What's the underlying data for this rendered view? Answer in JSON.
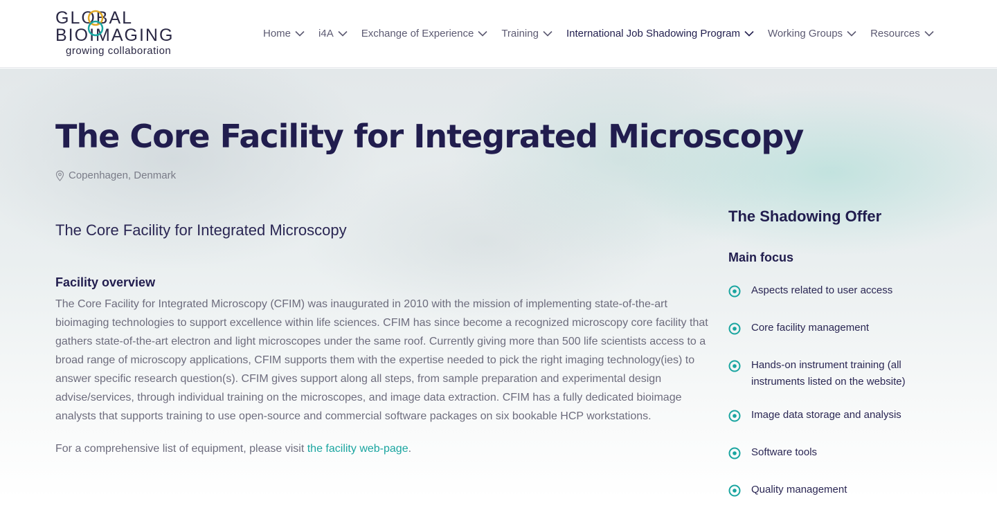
{
  "logo": {
    "line1": "GLOBAL",
    "line2": "BIOIMAGING",
    "tagline": "growing collaboration"
  },
  "nav": [
    {
      "label": "Home"
    },
    {
      "label": "i4A"
    },
    {
      "label": "Exchange of Experience"
    },
    {
      "label": "Training"
    },
    {
      "label": "International Job Shadowing Program",
      "active": true
    },
    {
      "label": "Working Groups"
    },
    {
      "label": "Resources"
    }
  ],
  "page": {
    "title": "The Core Facility for Integrated Microscopy",
    "location": "Copenhagen, Denmark",
    "subtitle": "The Core Facility for Integrated Microscopy",
    "overview_heading": "Facility overview",
    "overview_text": "The Core Facility for Integrated Microscopy (CFIM) was inaugurated in 2010 with the mission of implementing state-of-the-art bioimaging technologies to support excellence within life sciences. CFIM has since become a recognized microscopy core facility that gathers state-of-the-art electron and light microscopes under the same roof. Currently giving more than 500 life scientists access to a broad range of microscopy applications, CFIM supports them with the expertise needed to pick the right imaging technology(ies) to answer specific research question(s). CFIM gives support along all steps, from sample preparation and experimental design advise/services, through individual training on the microscopes, and image data extraction. CFIM has a fully dedicated bioimage analysts that supports training to use open-source and commercial software packages on six bookable HCP workstations.",
    "visit_text": "For a comprehensive list of equipment, please visit ",
    "visit_link": "the facility web-page",
    "visit_end": "."
  },
  "sidebar": {
    "heading": "The Shadowing Offer",
    "subheading": "Main focus",
    "items": [
      "Aspects related to user access",
      "Core facility management",
      "Hands-on instrument training (all instruments listed on the website)",
      "Image data storage and analysis",
      "Software tools",
      "Quality management"
    ]
  },
  "colors": {
    "accent": "#1aa5a0",
    "navy": "#211d4e"
  }
}
